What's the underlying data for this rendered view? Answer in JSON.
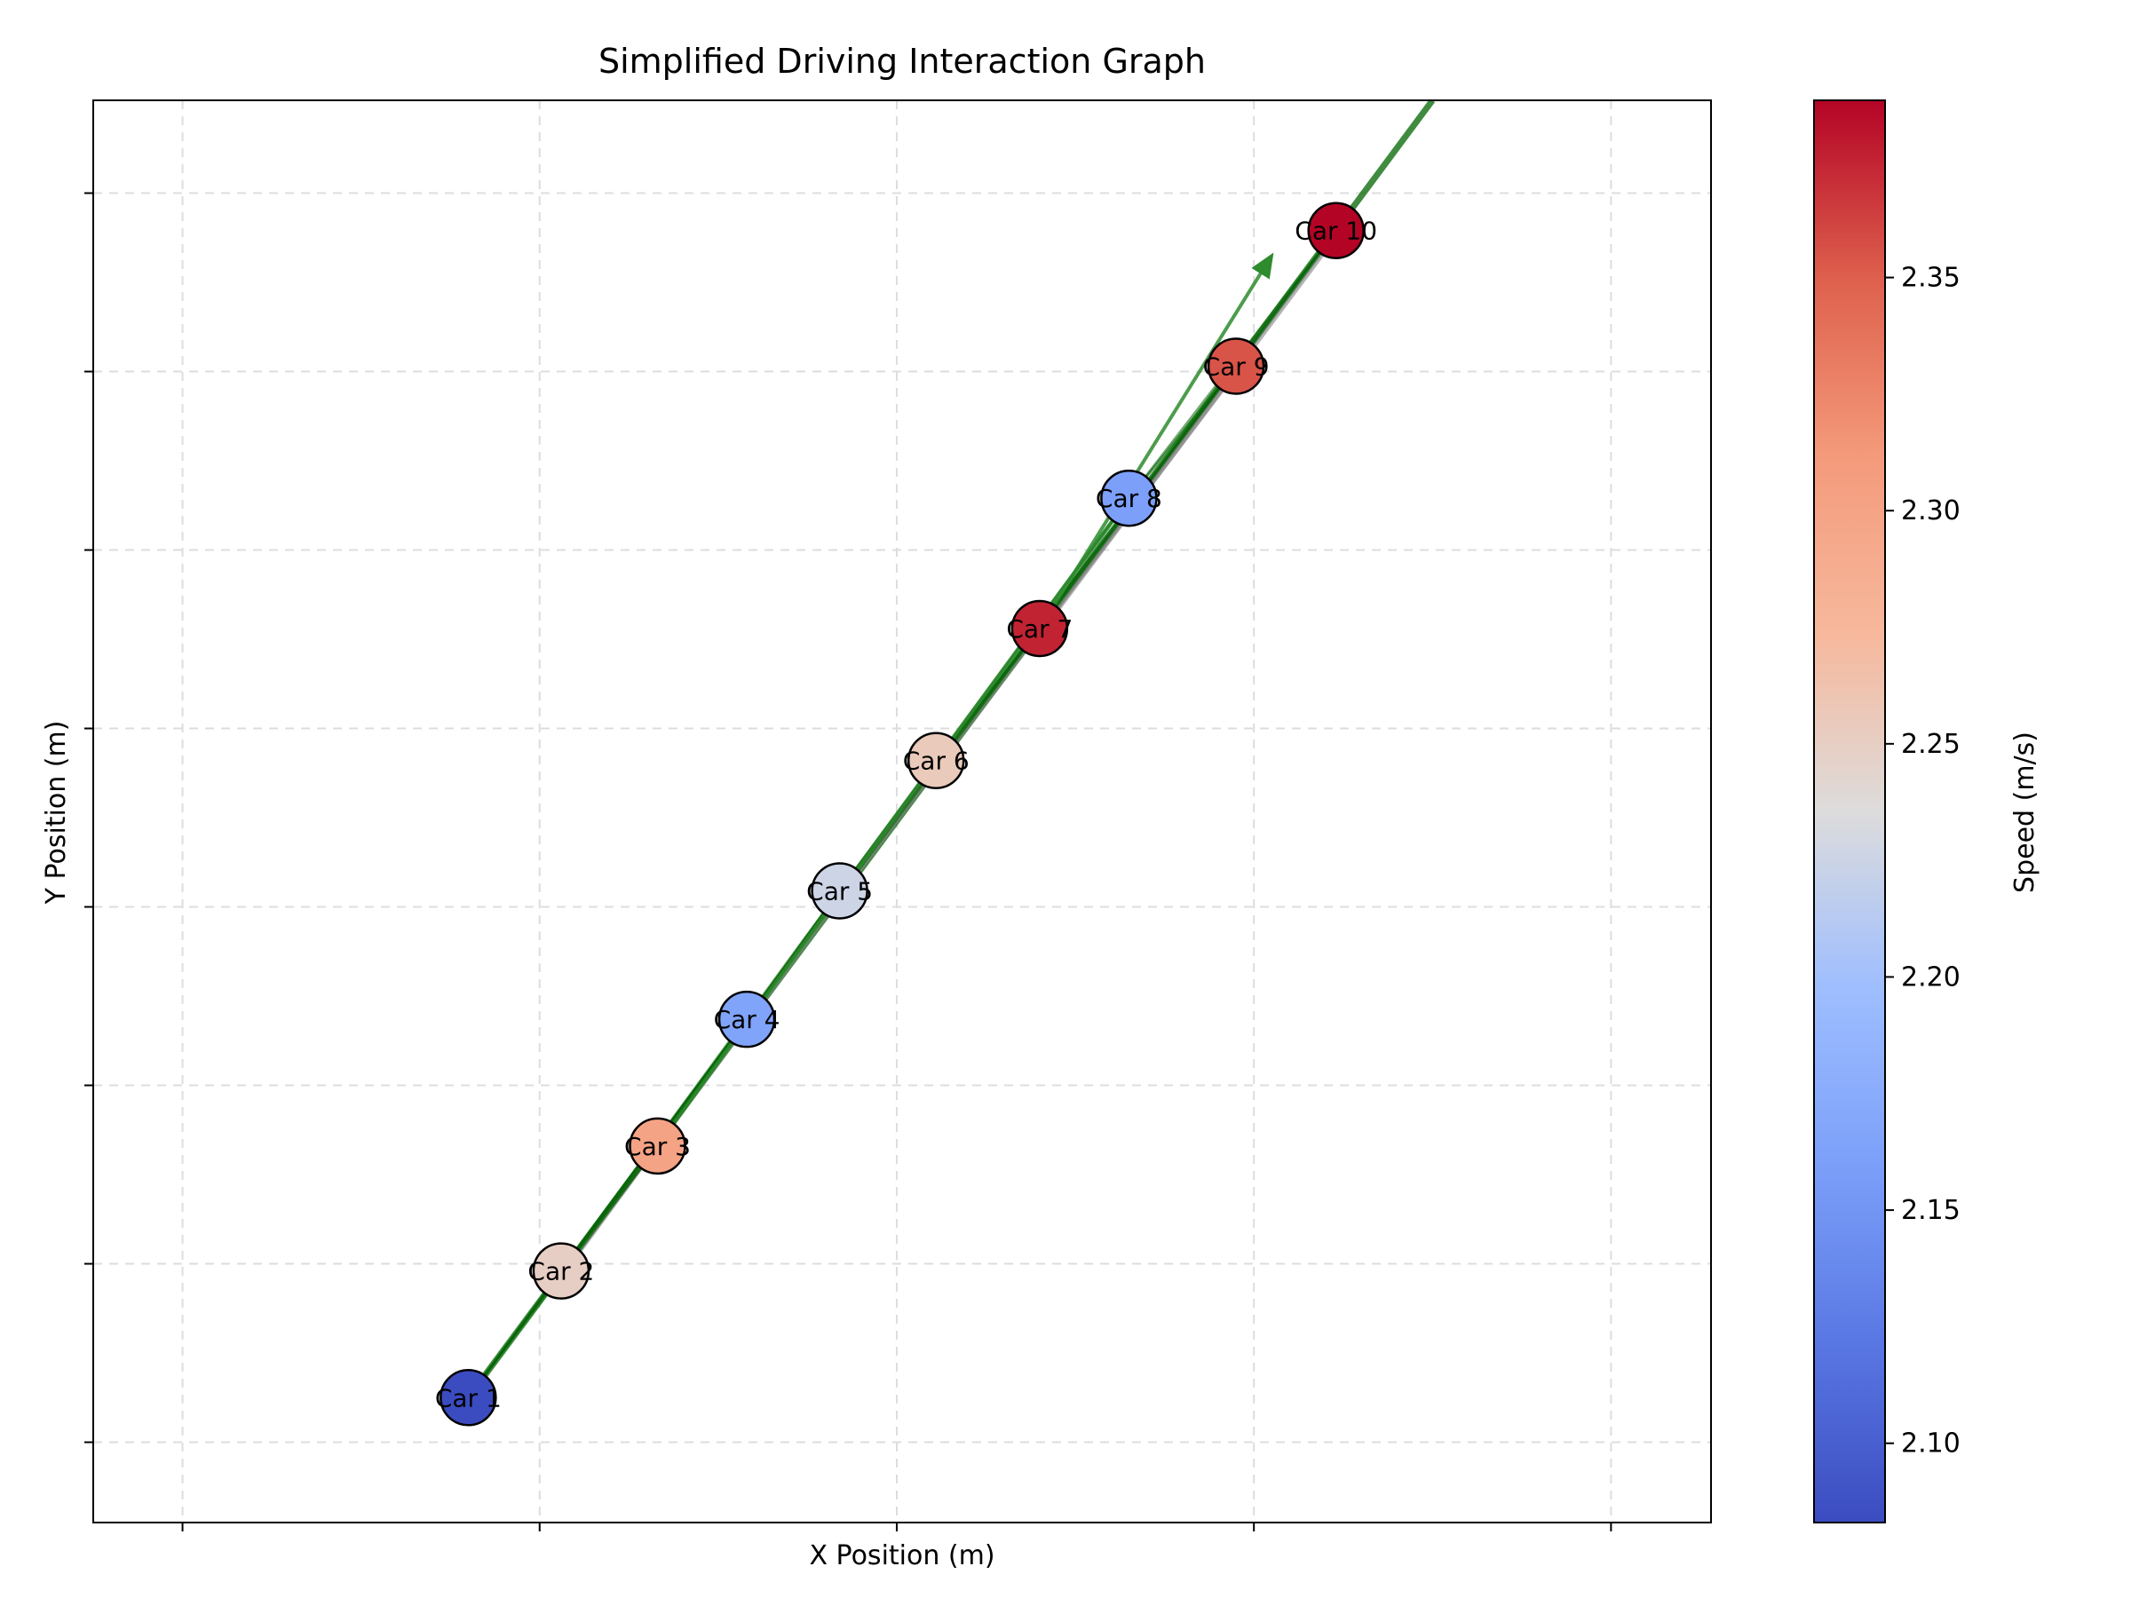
{
  "chart_data": {
    "type": "scatter",
    "title": "Simplified Driving Interaction Graph",
    "xlabel": "X Position (m)",
    "ylabel": "Y Position (m)",
    "grid": true,
    "colorbar": {
      "label": "Speed (m/s)",
      "colormap": "coolwarm",
      "range": [
        2.083,
        2.388
      ],
      "ticks": [
        2.1,
        2.15,
        2.2,
        2.25,
        2.3,
        2.35
      ],
      "tick_labels": [
        "2.10",
        "2.15",
        "2.20",
        "2.25",
        "2.30",
        "2.35"
      ]
    },
    "xlim": [
      -0.25,
      4.28
    ],
    "ylim": [
      -0.45,
      7.52
    ],
    "points": [
      {
        "label": "Car 1",
        "x": 0.8,
        "y": 0.25,
        "speed": 2.083
      },
      {
        "label": "Car 2",
        "x": 1.06,
        "y": 0.96,
        "speed": 2.25
      },
      {
        "label": "Car 3",
        "x": 1.33,
        "y": 1.66,
        "speed": 2.3
      },
      {
        "label": "Car 4",
        "x": 1.58,
        "y": 2.37,
        "speed": 2.165
      },
      {
        "label": "Car 5",
        "x": 1.84,
        "y": 3.09,
        "speed": 2.225
      },
      {
        "label": "Car 6",
        "x": 2.11,
        "y": 3.82,
        "speed": 2.255
      },
      {
        "label": "Car 7",
        "x": 2.4,
        "y": 4.56,
        "speed": 2.375
      },
      {
        "label": "Car 8",
        "x": 2.65,
        "y": 5.29,
        "speed": 2.16
      },
      {
        "label": "Car 9",
        "x": 2.95,
        "y": 6.03,
        "speed": 2.355
      },
      {
        "label": "Car 10",
        "x": 3.23,
        "y": 6.79,
        "speed": 2.388
      }
    ],
    "interactions": {
      "color": "#006400",
      "edges": [
        [
          0,
          1
        ],
        [
          0,
          2
        ],
        [
          0,
          3
        ],
        [
          1,
          2
        ],
        [
          1,
          3
        ],
        [
          1,
          4
        ],
        [
          2,
          3
        ],
        [
          2,
          4
        ],
        [
          2,
          5
        ],
        [
          3,
          4
        ],
        [
          3,
          5
        ],
        [
          3,
          6
        ],
        [
          4,
          5
        ],
        [
          4,
          6
        ],
        [
          4,
          7
        ],
        [
          5,
          6
        ],
        [
          5,
          7
        ],
        [
          5,
          8
        ],
        [
          6,
          7
        ],
        [
          6,
          8
        ],
        [
          6,
          9
        ],
        [
          7,
          8
        ],
        [
          7,
          9
        ],
        [
          8,
          9
        ]
      ],
      "grey_edges": [
        [
          1,
          5
        ],
        [
          4,
          8
        ],
        [
          6,
          9
        ]
      ],
      "arrows": [
        {
          "from": [
            1.33,
            1.66
          ],
          "to": [
            2.11,
            3.82
          ]
        },
        {
          "from": [
            2.4,
            4.56
          ],
          "to": [
            3.05,
            6.65
          ]
        },
        {
          "from": [
            2.11,
            3.82
          ],
          "to": [
            2.65,
            5.29
          ]
        }
      ],
      "extension": {
        "from": [
          0.8,
          0.25
        ],
        "to": [
          3.5,
          7.52
        ]
      }
    },
    "colors": {
      "point_edge": "#000000",
      "grid": "#dddddd",
      "grey_edge": "#808080"
    }
  }
}
